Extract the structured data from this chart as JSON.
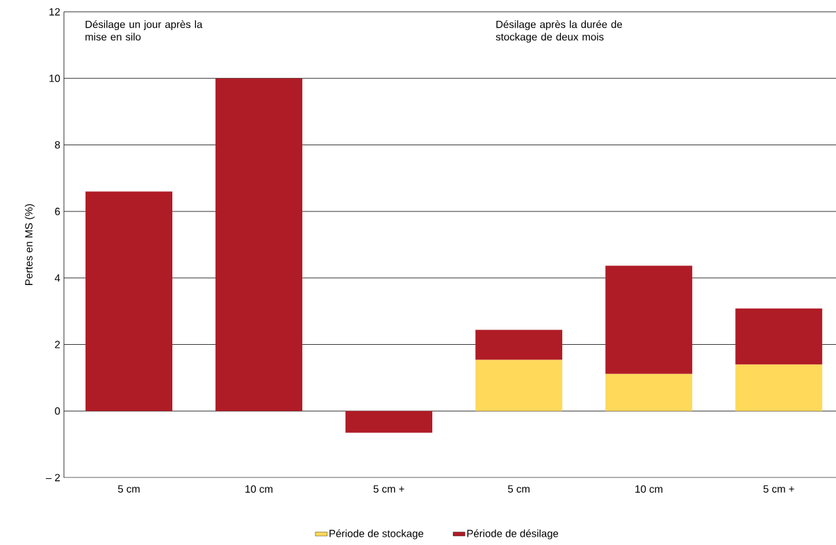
{
  "chart_data": {
    "type": "bar",
    "stacked": true,
    "ylabel": "Pertes en MS (%)",
    "categories": [
      "5 cm",
      "10 cm",
      "5 cm +",
      "5 cm",
      "10 cm",
      "5 cm +"
    ],
    "series": [
      {
        "name": "Période de stockage",
        "color": "#ffd95a",
        "values": [
          null,
          null,
          null,
          1.54,
          1.12,
          1.4
        ]
      },
      {
        "name": "Période de désilage",
        "color": "#b01c26",
        "values": [
          6.6,
          10.0,
          -0.65,
          0.9,
          3.25,
          1.68
        ]
      }
    ],
    "ylim": [
      -2,
      12
    ],
    "yticks": [
      {
        "value": -2,
        "label": "– 2"
      },
      0,
      2,
      4,
      6,
      8,
      10,
      12
    ],
    "annotations": [
      "Désilage un jour après la mise en silo",
      "Désilage après la durée de stockage de deux mois"
    ],
    "grid": "y",
    "legend": "bottom"
  }
}
